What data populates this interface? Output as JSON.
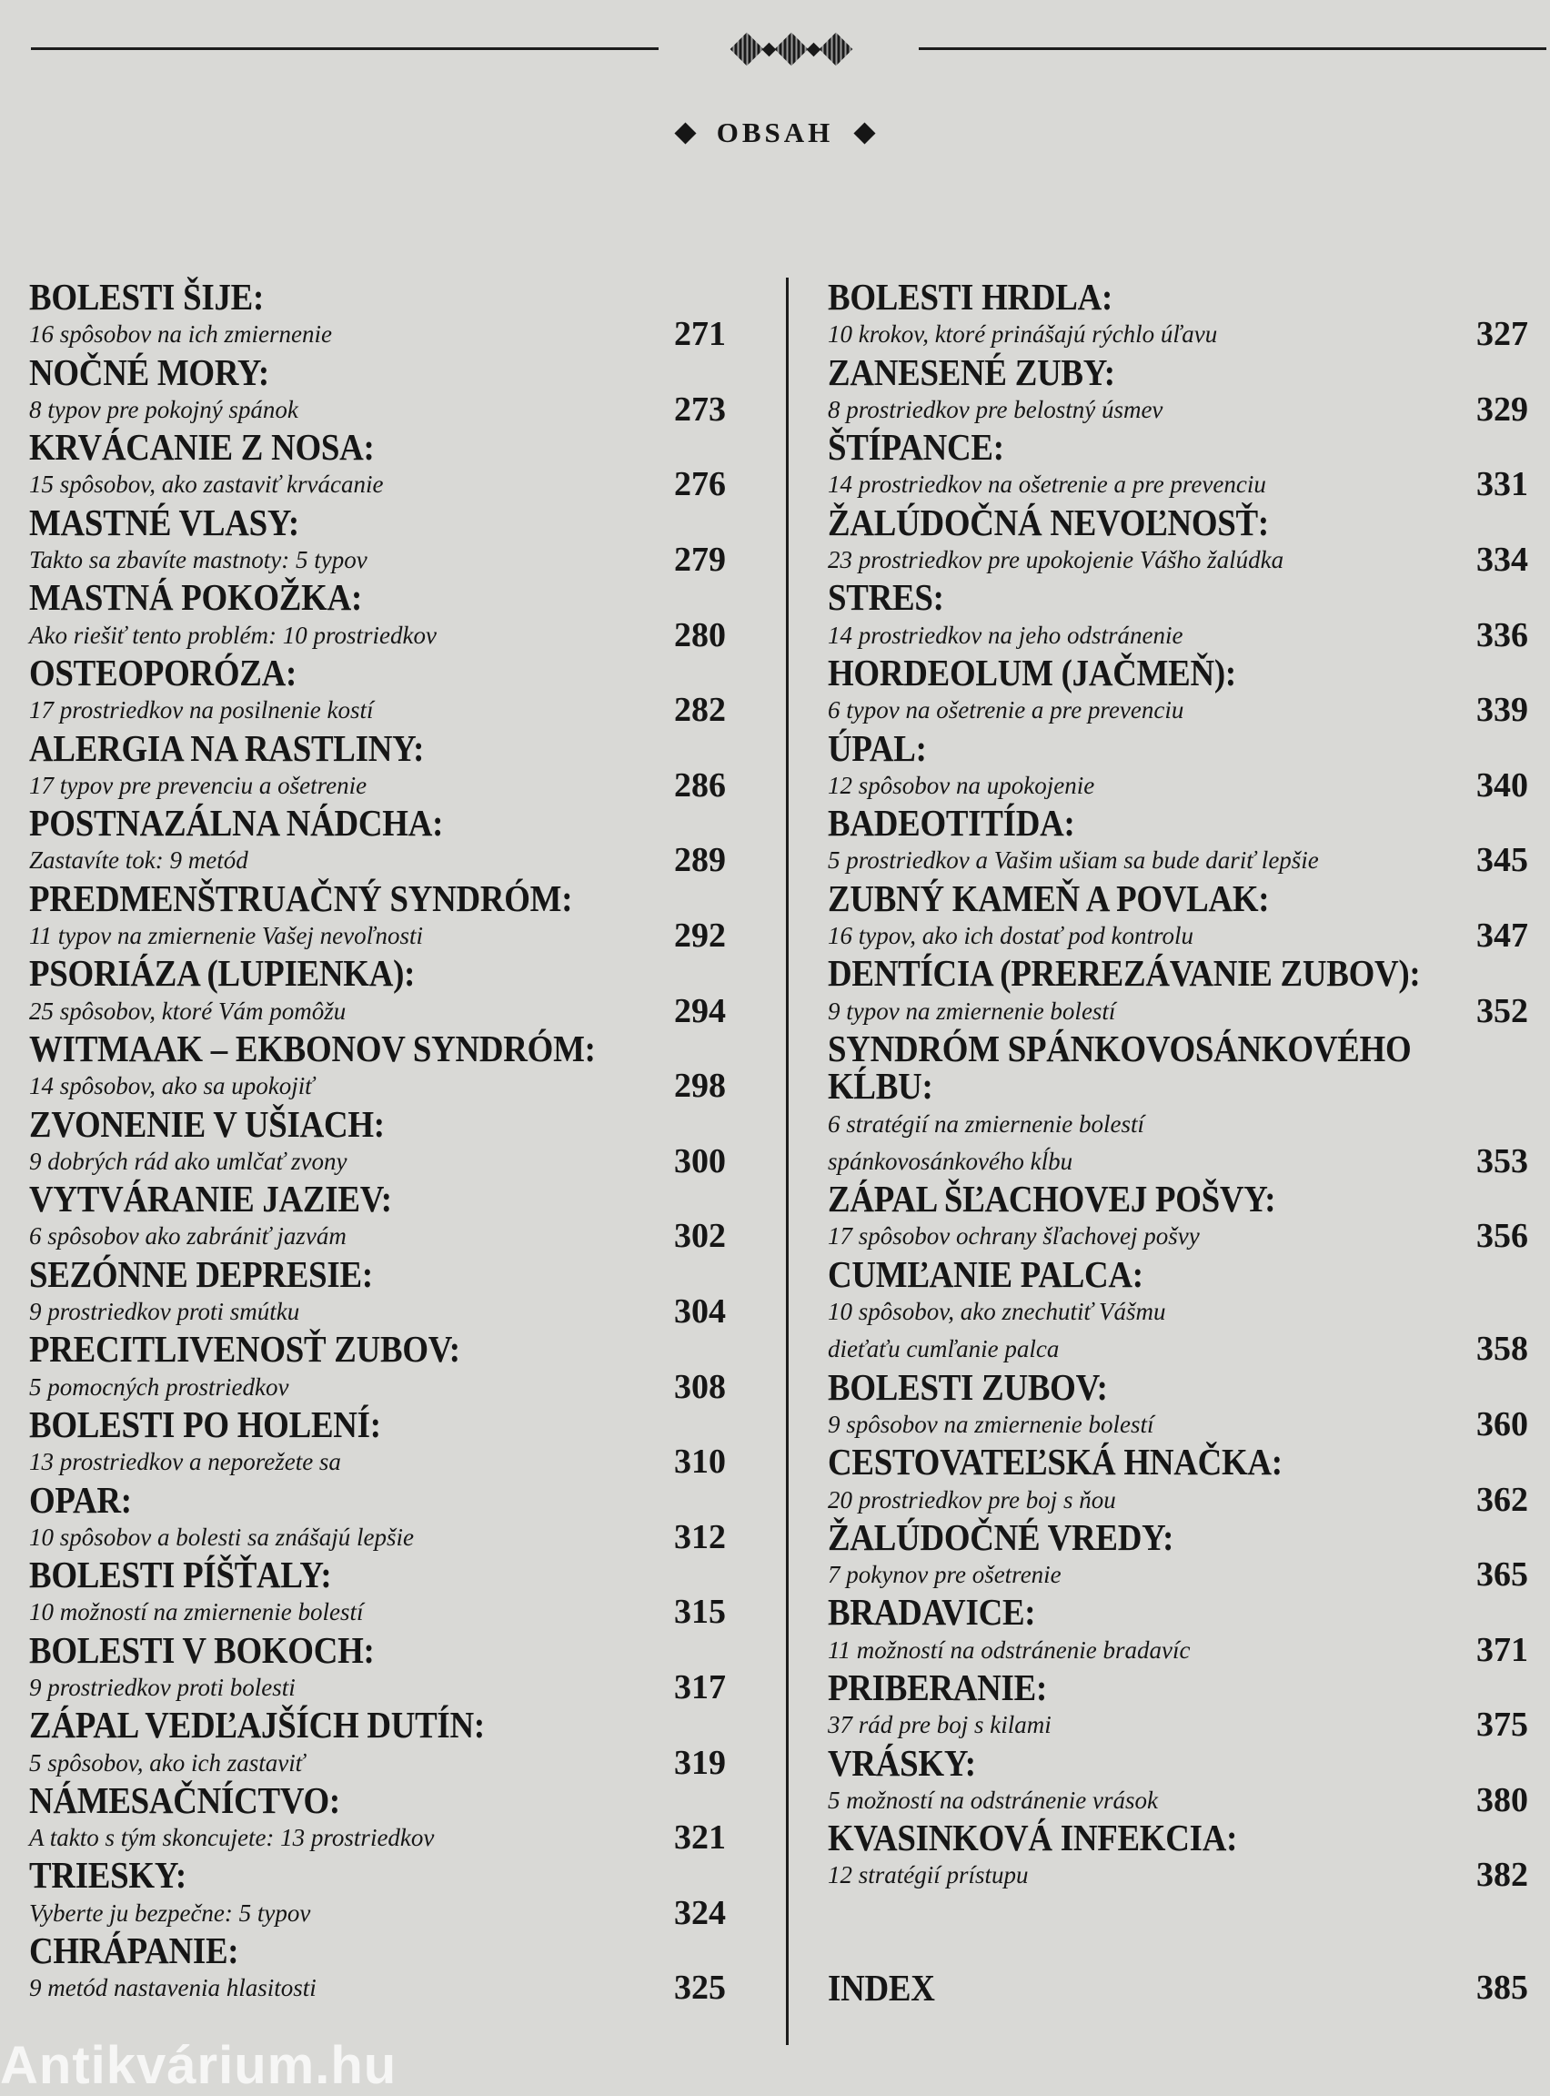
{
  "header": {
    "title": "OBSAH",
    "ornament_icon": "diamond-ornament"
  },
  "colors": {
    "paper": "#d9d9d6",
    "ink": "#161616"
  },
  "left_column": [
    {
      "heading": [
        "BOLESTI ŠIJE:"
      ],
      "subtitle": [
        "16 spôsobov na ich zmiernenie"
      ],
      "page": "271"
    },
    {
      "heading": [
        "NOČNÉ MORY:"
      ],
      "subtitle": [
        "8 typov pre pokojný spánok"
      ],
      "page": "273"
    },
    {
      "heading": [
        "KRVÁCANIE Z NOSA:"
      ],
      "subtitle": [
        "15 spôsobov, ako zastaviť krvácanie"
      ],
      "page": "276"
    },
    {
      "heading": [
        "MASTNÉ VLASY:"
      ],
      "subtitle": [
        "Takto sa zbavíte mastnoty: 5 typov"
      ],
      "page": "279"
    },
    {
      "heading": [
        "MASTNÁ POKOŽKA:"
      ],
      "subtitle": [
        "Ako riešiť tento problém: 10 prostriedkov"
      ],
      "page": "280"
    },
    {
      "heading": [
        "OSTEOPORÓZA:"
      ],
      "subtitle": [
        "17 prostriedkov na posilnenie kostí"
      ],
      "page": "282"
    },
    {
      "heading": [
        "ALERGIA NA RASTLINY:"
      ],
      "subtitle": [
        "17 typov pre prevenciu a ošetrenie"
      ],
      "page": "286"
    },
    {
      "heading": [
        "POSTNAZÁLNA NÁDCHA:"
      ],
      "subtitle": [
        "Zastavíte tok: 9 metód"
      ],
      "page": "289"
    },
    {
      "heading": [
        "PREDMENŠTRUAČNÝ SYNDRÓM:"
      ],
      "subtitle": [
        "11 typov na zmiernenie Vašej nevoľnosti"
      ],
      "page": "292"
    },
    {
      "heading": [
        "PSORIÁZA (LUPIENKA):"
      ],
      "subtitle": [
        "25 spôsobov, ktoré Vám pomôžu"
      ],
      "page": "294"
    },
    {
      "heading": [
        "WITMAAK – EKBONOV SYNDRÓM:"
      ],
      "subtitle": [
        "14 spôsobov, ako sa upokojiť"
      ],
      "page": "298"
    },
    {
      "heading": [
        "ZVONENIE V UŠIACH:"
      ],
      "subtitle": [
        "9 dobrých rád ako umlčať zvony"
      ],
      "page": "300"
    },
    {
      "heading": [
        "VYTVÁRANIE JAZIEV:"
      ],
      "subtitle": [
        "6 spôsobov ako zabrániť jazvám"
      ],
      "page": "302"
    },
    {
      "heading": [
        "SEZÓNNE DEPRESIE:"
      ],
      "subtitle": [
        "9 prostriedkov proti smútku"
      ],
      "page": "304"
    },
    {
      "heading": [
        "PRECITLIVENOSŤ ZUBOV:"
      ],
      "subtitle": [
        "5 pomocných prostriedkov"
      ],
      "page": "308"
    },
    {
      "heading": [
        "BOLESTI PO HOLENÍ:"
      ],
      "subtitle": [
        "13 prostriedkov a neporežete sa"
      ],
      "page": "310"
    },
    {
      "heading": [
        "OPAR:"
      ],
      "subtitle": [
        "10 spôsobov a bolesti sa znášajú lepšie"
      ],
      "page": "312"
    },
    {
      "heading": [
        "BOLESTI PÍŠŤALY:"
      ],
      "subtitle": [
        "10 možností na zmiernenie bolestí"
      ],
      "page": "315"
    },
    {
      "heading": [
        "BOLESTI V BOKOCH:"
      ],
      "subtitle": [
        "9 prostriedkov proti bolesti"
      ],
      "page": "317"
    },
    {
      "heading": [
        "ZÁPAL VEDĽAJŠÍCH DUTÍN:"
      ],
      "subtitle": [
        "5 spôsobov, ako ich zastaviť"
      ],
      "page": "319"
    },
    {
      "heading": [
        "NÁMESAČNÍCTVO:"
      ],
      "subtitle": [
        "A takto s tým skoncujete: 13 prostriedkov"
      ],
      "page": "321"
    },
    {
      "heading": [
        "TRIESKY:"
      ],
      "subtitle": [
        "Vyberte ju bezpečne: 5 typov"
      ],
      "page": "324"
    },
    {
      "heading": [
        "CHRÁPANIE:"
      ],
      "subtitle": [
        "9 metód nastavenia hlasitosti"
      ],
      "page": "325"
    }
  ],
  "right_column": [
    {
      "heading": [
        "BOLESTI HRDLA:"
      ],
      "subtitle": [
        "10 krokov, ktoré prinášajú rýchlo úľavu"
      ],
      "page": "327"
    },
    {
      "heading": [
        "ZANESENÉ ZUBY:"
      ],
      "subtitle": [
        "8 prostriedkov pre belostný úsmev"
      ],
      "page": "329"
    },
    {
      "heading": [
        "ŠTÍPANCE:"
      ],
      "subtitle": [
        "14 prostriedkov na ošetrenie a pre prevenciu"
      ],
      "page": "331"
    },
    {
      "heading": [
        "ŽALÚDOČNÁ NEVOĽNOSŤ:"
      ],
      "subtitle": [
        "23 prostriedkov pre upokojenie Vášho žalúdka"
      ],
      "page": "334"
    },
    {
      "heading": [
        "STRES:"
      ],
      "subtitle": [
        "14 prostriedkov na jeho odstránenie"
      ],
      "page": "336"
    },
    {
      "heading": [
        "HORDEOLUM (JAČMEŇ):"
      ],
      "subtitle": [
        "6 typov na ošetrenie a pre prevenciu"
      ],
      "page": "339"
    },
    {
      "heading": [
        "ÚPAL:"
      ],
      "subtitle": [
        "12 spôsobov na upokojenie"
      ],
      "page": "340"
    },
    {
      "heading": [
        "BADEOTITÍDA:"
      ],
      "subtitle": [
        "5 prostriedkov a Vašim ušiam sa bude dariť lepšie"
      ],
      "page": "345"
    },
    {
      "heading": [
        "ZUBNÝ KAMEŇ A POVLAK:"
      ],
      "subtitle": [
        "16 typov, ako ich dostať pod kontrolu"
      ],
      "page": "347"
    },
    {
      "heading": [
        "DENTÍCIA (PREREZÁVANIE ZUBOV):"
      ],
      "subtitle": [
        "9 typov na zmiernenie bolestí"
      ],
      "page": "352"
    },
    {
      "heading": [
        "SYNDRÓM SPÁNKOVOSÁNKOVÉHO",
        "KĹBU:"
      ],
      "subtitle": [
        "6 stratégií na zmiernenie bolestí",
        "spánkovosánkového kĺbu"
      ],
      "page": "353"
    },
    {
      "heading": [
        "ZÁPAL ŠĽACHOVEJ POŠVY:"
      ],
      "subtitle": [
        "17 spôsobov ochrany šľachovej pošvy"
      ],
      "page": "356"
    },
    {
      "heading": [
        "CUMĽANIE PALCA:"
      ],
      "subtitle": [
        "10 spôsobov, ako znechutiť Vášmu",
        "dieťaťu cumľanie palca"
      ],
      "page": "358"
    },
    {
      "heading": [
        "BOLESTI ZUBOV:"
      ],
      "subtitle": [
        "9 spôsobov na zmiernenie bolestí"
      ],
      "page": "360"
    },
    {
      "heading": [
        "CESTOVATEĽSKÁ HNAČKA:"
      ],
      "subtitle": [
        "20 prostriedkov pre boj s ňou"
      ],
      "page": "362"
    },
    {
      "heading": [
        "ŽALÚDOČNÉ VREDY:"
      ],
      "subtitle": [
        "7 pokynov pre ošetrenie"
      ],
      "page": "365"
    },
    {
      "heading": [
        "BRADAVICE:"
      ],
      "subtitle": [
        "11 možností na odstránenie bradavíc"
      ],
      "page": "371"
    },
    {
      "heading": [
        "PRIBERANIE:"
      ],
      "subtitle": [
        "37 rád pre boj s kilami"
      ],
      "page": "375"
    },
    {
      "heading": [
        "VRÁSKY:"
      ],
      "subtitle": [
        "5 možností na odstránenie vrások"
      ],
      "page": "380"
    },
    {
      "heading": [
        "KVASINKOVÁ INFEKCIA:"
      ],
      "subtitle": [
        "12 stratégií prístupu"
      ],
      "page": "382"
    }
  ],
  "index": {
    "label": "INDEX",
    "page": "385"
  },
  "watermark": "Antikvárium.hu"
}
